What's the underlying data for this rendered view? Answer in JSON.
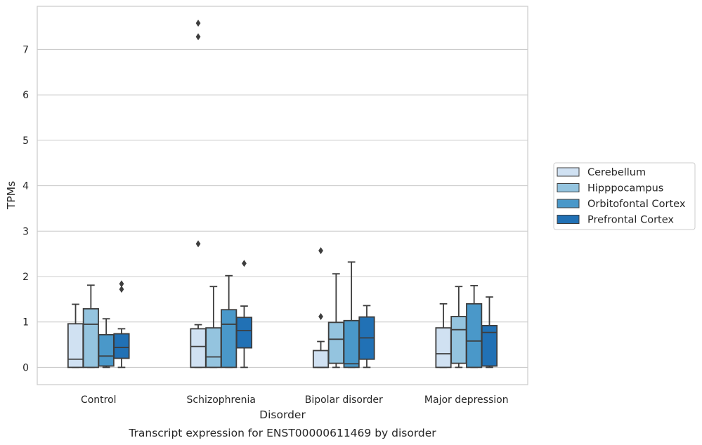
{
  "chart_data": {
    "type": "box",
    "caption": "Transcript expression for ENST00000611469 by disorder",
    "xlabel": "Disorder",
    "ylabel": "TPMs",
    "ylim": [
      -0.38,
      7.95
    ],
    "yticks": [
      0,
      1,
      2,
      3,
      4,
      5,
      6,
      7
    ],
    "grid": "horizontal",
    "legend_position": "right",
    "categories": [
      "Control",
      "Schizophrenia",
      "Bipolar disorder",
      "Major depression"
    ],
    "series": [
      {
        "name": "Cerebellum",
        "color": "#d0e1f2",
        "boxes": [
          {
            "whislo": 0,
            "q1": 0,
            "med": 0.18,
            "q3": 0.96,
            "whishi": 1.39,
            "fliers": []
          },
          {
            "whislo": 0,
            "q1": 0,
            "med": 0.46,
            "q3": 0.85,
            "whishi": 0.94,
            "fliers": [
              7.58,
              7.28,
              2.72
            ]
          },
          {
            "whislo": 0,
            "q1": 0,
            "med": 0,
            "q3": 0.37,
            "whishi": 0.57,
            "fliers": [
              2.57,
              1.12
            ]
          },
          {
            "whislo": 0,
            "q1": 0,
            "med": 0.3,
            "q3": 0.87,
            "whishi": 1.4,
            "fliers": []
          }
        ]
      },
      {
        "name": "Hipppocampus",
        "color": "#94c4df",
        "boxes": [
          {
            "whislo": 0,
            "q1": 0,
            "med": 0.95,
            "q3": 1.29,
            "whishi": 1.81,
            "fliers": []
          },
          {
            "whislo": 0,
            "q1": 0,
            "med": 0.23,
            "q3": 0.87,
            "whishi": 1.78,
            "fliers": []
          },
          {
            "whislo": 0,
            "q1": 0.09,
            "med": 0.62,
            "q3": 0.99,
            "whishi": 2.06,
            "fliers": []
          },
          {
            "whislo": 0,
            "q1": 0.09,
            "med": 0.83,
            "q3": 1.12,
            "whishi": 1.78,
            "fliers": []
          }
        ]
      },
      {
        "name": "Orbitofontal Cortex",
        "color": "#4a98c9",
        "boxes": [
          {
            "whislo": 0,
            "q1": 0.03,
            "med": 0.25,
            "q3": 0.72,
            "whishi": 1.07,
            "fliers": []
          },
          {
            "whislo": 0,
            "q1": 0,
            "med": 0.95,
            "q3": 1.27,
            "whishi": 2.02,
            "fliers": []
          },
          {
            "whislo": 0,
            "q1": 0,
            "med": 0.08,
            "q3": 1.03,
            "whishi": 2.32,
            "fliers": []
          },
          {
            "whislo": 0,
            "q1": 0,
            "med": 0.58,
            "q3": 1.4,
            "whishi": 1.8,
            "fliers": []
          }
        ]
      },
      {
        "name": "Prefrontal Cortex",
        "color": "#2171b5",
        "boxes": [
          {
            "whislo": 0,
            "q1": 0.2,
            "med": 0.44,
            "q3": 0.74,
            "whishi": 0.85,
            "fliers": [
              1.84,
              1.72
            ]
          },
          {
            "whislo": 0,
            "q1": 0.43,
            "med": 0.81,
            "q3": 1.1,
            "whishi": 1.35,
            "fliers": [
              2.29
            ]
          },
          {
            "whislo": 0,
            "q1": 0.18,
            "med": 0.65,
            "q3": 1.11,
            "whishi": 1.36,
            "fliers": []
          },
          {
            "whislo": 0,
            "q1": 0.03,
            "med": 0.77,
            "q3": 0.92,
            "whishi": 1.55,
            "fliers": []
          }
        ]
      }
    ]
  }
}
